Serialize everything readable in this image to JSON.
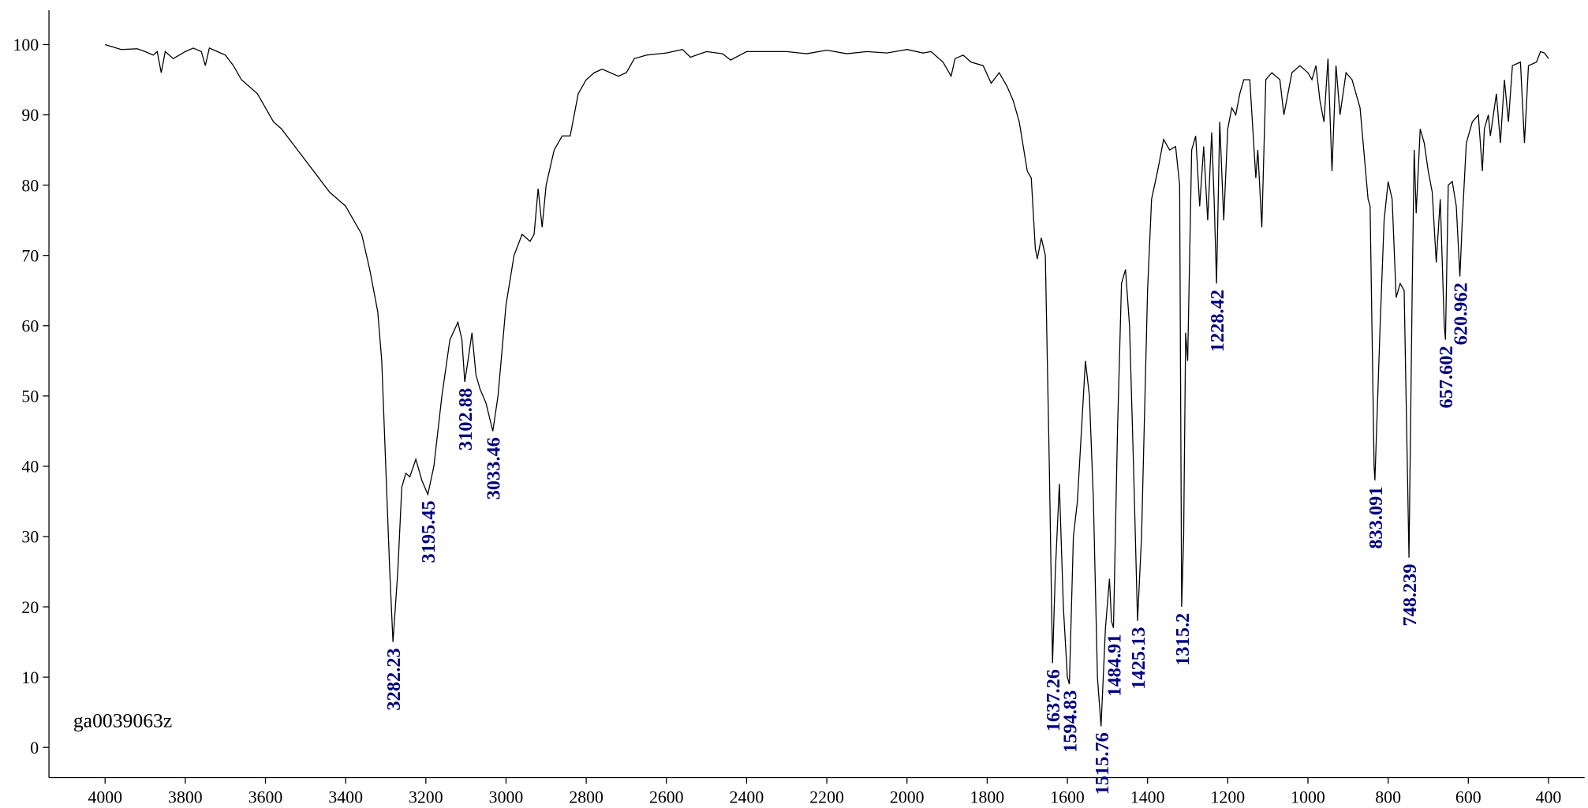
{
  "chart_data": {
    "type": "line",
    "sample_name": "ga0039063z",
    "x": [
      4000,
      3960,
      3920,
      3900,
      3880,
      3870,
      3860,
      3850,
      3830,
      3800,
      3780,
      3760,
      3750,
      3740,
      3720,
      3700,
      3680,
      3660,
      3640,
      3620,
      3600,
      3580,
      3560,
      3520,
      3480,
      3440,
      3400,
      3380,
      3360,
      3340,
      3320,
      3310,
      3300,
      3290,
      3282,
      3270,
      3260,
      3250,
      3240,
      3225,
      3210,
      3195,
      3180,
      3160,
      3140,
      3120,
      3110,
      3103,
      3095,
      3085,
      3075,
      3065,
      3050,
      3033,
      3020,
      3000,
      2980,
      2960,
      2940,
      2930,
      2920,
      2910,
      2900,
      2880,
      2860,
      2840,
      2820,
      2800,
      2780,
      2760,
      2740,
      2720,
      2700,
      2680,
      2650,
      2600,
      2560,
      2540,
      2500,
      2460,
      2440,
      2400,
      2300,
      2250,
      2200,
      2150,
      2100,
      2050,
      2000,
      1960,
      1940,
      1910,
      1890,
      1880,
      1860,
      1840,
      1810,
      1790,
      1770,
      1750,
      1735,
      1720,
      1700,
      1690,
      1680,
      1675,
      1665,
      1655,
      1645,
      1637,
      1630,
      1620,
      1610,
      1600,
      1595,
      1585,
      1575,
      1565,
      1555,
      1545,
      1535,
      1525,
      1516,
      1505,
      1495,
      1490,
      1485,
      1475,
      1465,
      1455,
      1445,
      1435,
      1425,
      1415,
      1400,
      1390,
      1375,
      1360,
      1345,
      1330,
      1320,
      1315,
      1310,
      1305,
      1300,
      1290,
      1280,
      1270,
      1260,
      1250,
      1240,
      1234,
      1228,
      1220,
      1210,
      1200,
      1190,
      1180,
      1170,
      1160,
      1145,
      1130,
      1125,
      1115,
      1105,
      1090,
      1070,
      1060,
      1050,
      1040,
      1020,
      1000,
      990,
      980,
      970,
      960,
      950,
      940,
      930,
      920,
      905,
      890,
      870,
      850,
      845,
      835,
      833,
      820,
      810,
      800,
      790,
      780,
      770,
      760,
      748,
      740,
      735,
      730,
      720,
      710,
      700,
      690,
      680,
      670,
      660,
      657,
      650,
      640,
      630,
      621,
      615,
      605,
      590,
      575,
      565,
      560,
      550,
      545,
      530,
      520,
      510,
      500,
      490,
      470,
      460,
      450,
      430,
      420,
      410,
      400
    ],
    "values": [
      100,
      99.3,
      99.4,
      99,
      98.5,
      99,
      96,
      99,
      98,
      99,
      99.5,
      99,
      97,
      99.5,
      99,
      98.5,
      97,
      95,
      94,
      93,
      91,
      89,
      88,
      85,
      82,
      79,
      77,
      75,
      73,
      68,
      62,
      55,
      40,
      25,
      15,
      25,
      37,
      39,
      38.5,
      41,
      38,
      36,
      40,
      50,
      58,
      60.5,
      58,
      52,
      55,
      59,
      53,
      51,
      49,
      45,
      50,
      63,
      70,
      73,
      72,
      73,
      79.5,
      74,
      80,
      85,
      87,
      87,
      93,
      95,
      96,
      96.5,
      96,
      95.5,
      96,
      98,
      98.5,
      98.8,
      99.3,
      98.2,
      99,
      98.7,
      97.8,
      99,
      99,
      98.7,
      99.2,
      98.7,
      99,
      98.8,
      99.3,
      98.8,
      99,
      97.5,
      95.5,
      98,
      98.5,
      97.5,
      97,
      94.5,
      96,
      94,
      92,
      89,
      82,
      81,
      71,
      69.5,
      72.5,
      70,
      40,
      12,
      25,
      37.5,
      20,
      10,
      9,
      30,
      35,
      45,
      55,
      50,
      35,
      10,
      3,
      17,
      24,
      18,
      17,
      45,
      66,
      68,
      60,
      40,
      18,
      30,
      65,
      78,
      82,
      86.5,
      85,
      85.5,
      80,
      20,
      30,
      59,
      55,
      85,
      87,
      77,
      85.5,
      75,
      87.5,
      78,
      66,
      89,
      75,
      88,
      91,
      90,
      93,
      95,
      95,
      81,
      85,
      74,
      95,
      96,
      95,
      90,
      93,
      96,
      97,
      96,
      95,
      97,
      92,
      89,
      98,
      82,
      97,
      90,
      96,
      95,
      91,
      78,
      77,
      40,
      38,
      60,
      75,
      80.5,
      78,
      64,
      66,
      65,
      27,
      65,
      85,
      76,
      88,
      86,
      82,
      79,
      69,
      78,
      60,
      58,
      80,
      80.5,
      77,
      67,
      75,
      86,
      89,
      90,
      82,
      88,
      90,
      87,
      93,
      86,
      95,
      89,
      97,
      97.5,
      86,
      97,
      97.5,
      99,
      98.8,
      98
    ],
    "color": "#000000",
    "peak_labels": {
      "color": "#00007f",
      "x": [
        3282.23,
        3195.45,
        3102.88,
        3033.46,
        1637.26,
        1594.83,
        1515.76,
        1484.91,
        1425.13,
        1315.2,
        1228.42,
        833.091,
        748.239,
        657.602,
        620.962
      ],
      "y": [
        15,
        36,
        52,
        45,
        12,
        9,
        3,
        17,
        18,
        20,
        66,
        38,
        27,
        58,
        67
      ]
    },
    "xlim": [
      4140,
      310
    ],
    "ylim": [
      -4.3,
      104.9
    ],
    "xticks": [
      4000,
      3800,
      3600,
      3400,
      3200,
      3000,
      2800,
      2600,
      2400,
      2200,
      2000,
      1800,
      1600,
      1400,
      1200,
      1000,
      800,
      600,
      400
    ],
    "yticks": [
      0,
      10,
      20,
      30,
      40,
      50,
      60,
      70,
      80,
      90,
      100
    ]
  }
}
